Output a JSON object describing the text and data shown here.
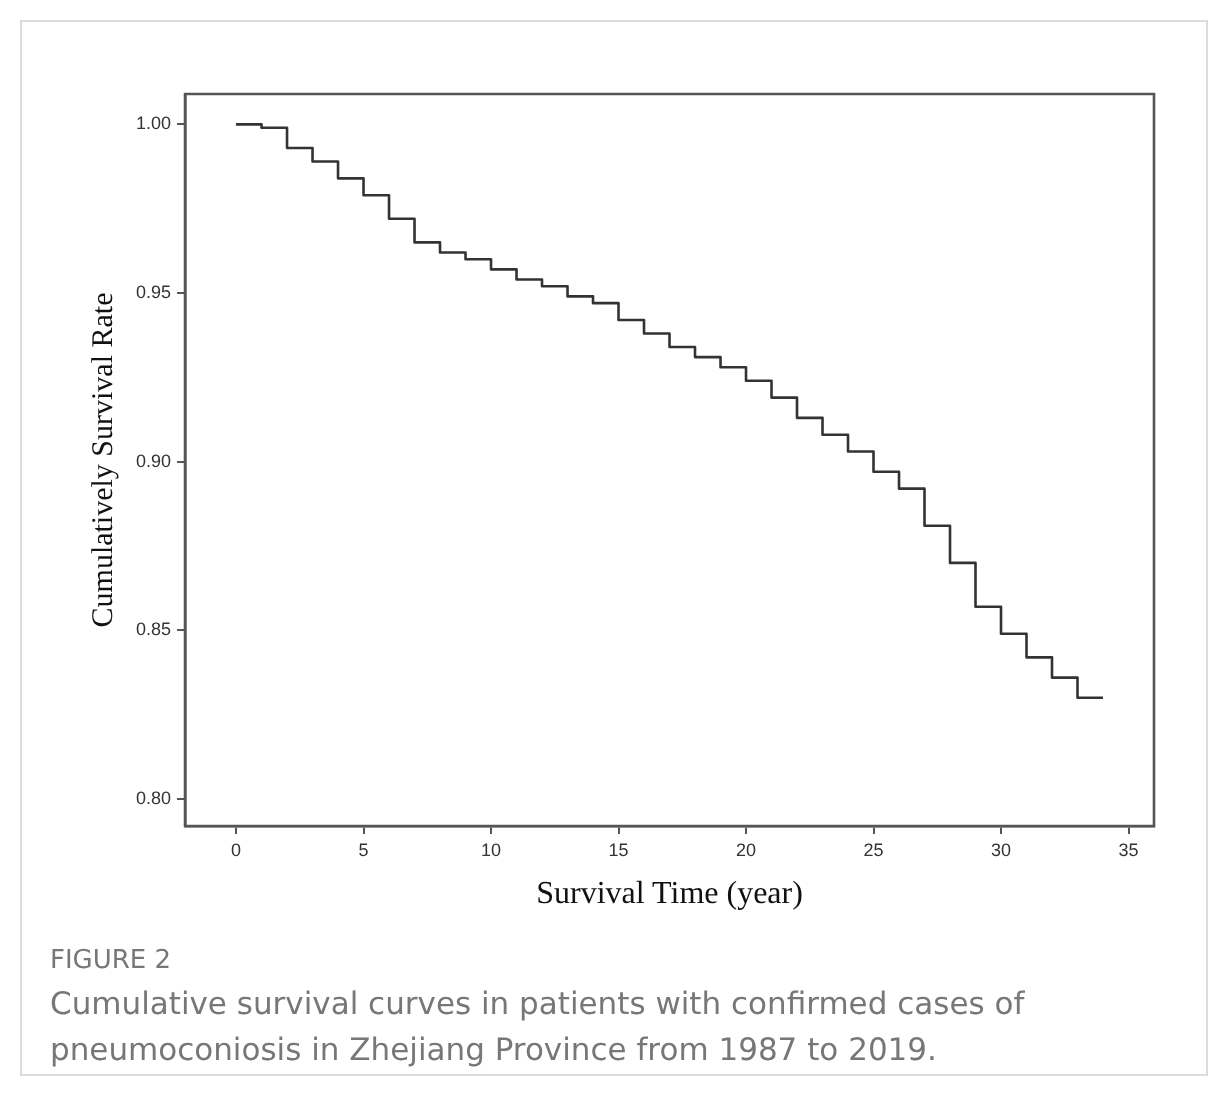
{
  "chart_data": {
    "type": "step",
    "xlabel": "Survival Time (year)",
    "ylabel": "Cumulatively Survival Rate",
    "annotations": [
      "FIGURE 2",
      "Cumulative survival curves in patients with confirmed cases of pneumoconiosis in Zhejiang Province from 1987 to 2019."
    ],
    "x": [
      0,
      1,
      2,
      3,
      4,
      5,
      6,
      7,
      8,
      9,
      10,
      11,
      12,
      13,
      14,
      15,
      16,
      17,
      18,
      19,
      20,
      21,
      22,
      23,
      24,
      25,
      26,
      27,
      28,
      29,
      30,
      31,
      32,
      33,
      34
    ],
    "series": [
      {
        "color": "#333333",
        "values": [
          1.0,
          0.999,
          0.993,
          0.989,
          0.984,
          0.979,
          0.972,
          0.965,
          0.962,
          0.96,
          0.957,
          0.954,
          0.952,
          0.949,
          0.947,
          0.942,
          0.938,
          0.934,
          0.931,
          0.928,
          0.924,
          0.919,
          0.913,
          0.908,
          0.903,
          0.897,
          0.892,
          0.881,
          0.87,
          0.857,
          0.849,
          0.842,
          0.836,
          0.83,
          0.83
        ]
      }
    ],
    "xlim": [
      -2,
      36
    ],
    "ylim": [
      0.792,
      1.009
    ],
    "xticks": [
      0,
      5,
      10,
      15,
      20,
      25,
      30,
      35
    ],
    "yticks": [
      {
        "value": 0.8,
        "label": "0.80"
      },
      {
        "value": 0.85,
        "label": "0.85"
      },
      {
        "value": 0.9,
        "label": "0.90"
      },
      {
        "value": 0.95,
        "label": "0.95"
      },
      {
        "value": 1,
        "label": "1.00"
      }
    ],
    "grid": false,
    "legend": false,
    "marker": "none",
    "line_style": "solid"
  }
}
